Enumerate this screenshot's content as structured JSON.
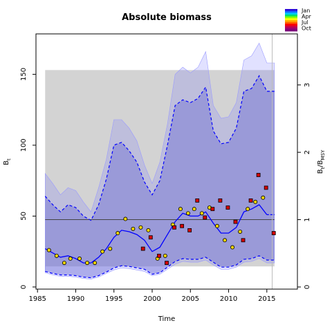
{
  "chart_data": {
    "type": "line",
    "title": "Absolute biomass",
    "xlabel": "Time",
    "ylabel": "B_t",
    "ylabel_right": "B_t/B_MSY",
    "xlim": [
      1984.8,
      2019.0
    ],
    "ylim": [
      -1.5,
      178.5
    ],
    "x_ticks": [
      1985,
      1990,
      1995,
      2000,
      2005,
      2010,
      2015
    ],
    "y_ticks": [
      0,
      50,
      100,
      150
    ],
    "right_ticks": [
      {
        "label": "0",
        "biomass": 0
      },
      {
        "label": "1",
        "biomass": 47.5
      },
      {
        "label": "2",
        "biomass": 95
      },
      {
        "label": "3",
        "biomass": 142.5
      }
    ],
    "bmsy": 47.5,
    "bmsy_ci_band": {
      "x": [
        1986,
        2016
      ],
      "lower": 14.5,
      "upper": 153
    },
    "forecast_start": 2015.7,
    "legend": {
      "position": "top-right",
      "labels": [
        "Jan",
        "Apr",
        "Jul",
        "Oct"
      ],
      "colors": [
        "#2a0ad8",
        "#1565ff",
        "#00c8ff",
        "#00e070",
        "#80ff00",
        "#ffff00",
        "#ffb000",
        "#ff6000",
        "#ff0000",
        "#d00040",
        "#a00070",
        "#7d007a"
      ]
    },
    "estimate": {
      "x": [
        1986,
        1987,
        1988,
        1989,
        1990,
        1991,
        1992,
        1993,
        1994,
        1995,
        1996,
        1997,
        1998,
        1999,
        2000,
        2001,
        2002,
        2003,
        2004,
        2005,
        2006,
        2007,
        2008,
        2009,
        2010,
        2011,
        2012,
        2013,
        2014,
        2015,
        2016
      ],
      "y": [
        27,
        24,
        21,
        22,
        20,
        17,
        17,
        21,
        27,
        35,
        40,
        39,
        37,
        33,
        25,
        28,
        37,
        46,
        52,
        50,
        50,
        53,
        45,
        38,
        38,
        42,
        53,
        55,
        58,
        51,
        51
      ]
    },
    "ci_lower": {
      "x": [
        1986,
        1987,
        1988,
        1989,
        1990,
        1991,
        1992,
        1993,
        1994,
        1995,
        1996,
        1997,
        1998,
        1999,
        2000,
        2001,
        2002,
        2003,
        2004,
        2005,
        2006,
        2007,
        2008,
        2009,
        2010,
        2011,
        2012,
        2013,
        2014,
        2015,
        2016
      ],
      "y": [
        11,
        9.5,
        8.5,
        8.5,
        8,
        7,
        6.5,
        8,
        10.5,
        13.5,
        15,
        14.5,
        13.5,
        12.5,
        9,
        10,
        14,
        18,
        20,
        19.5,
        19.5,
        21,
        17.5,
        14,
        14,
        15.5,
        19.5,
        20,
        22,
        19,
        19
      ]
    },
    "ci_upper": {
      "x": [
        1986,
        1987,
        1988,
        1989,
        1990,
        1991,
        1992,
        1993,
        1994,
        1995,
        1996,
        1997,
        1998,
        1999,
        2000,
        2001,
        2002,
        2003,
        2004,
        2005,
        2006,
        2007,
        2008,
        2009,
        2010,
        2011,
        2012,
        2013,
        2014,
        2015,
        2016
      ],
      "y": [
        64,
        58,
        53,
        58,
        56,
        50,
        47,
        58,
        76,
        100,
        102,
        96,
        88,
        74,
        65,
        75,
        100,
        128,
        132,
        130,
        133,
        141,
        110,
        101,
        102,
        112,
        138,
        140,
        149,
        138,
        138
      ]
    },
    "outer_band_lower": {
      "x": [
        1986,
        1987,
        1988,
        1989,
        1990,
        1991,
        1992,
        1993,
        1994,
        1995,
        1996,
        1997,
        1998,
        1999,
        2000,
        2001,
        2002,
        2003,
        2004,
        2005,
        2006,
        2007,
        2008,
        2009,
        2010,
        2011,
        2012,
        2013,
        2014,
        2015,
        2016
      ],
      "y": [
        10,
        8.5,
        7.5,
        7.5,
        7,
        6,
        5.5,
        7,
        9.5,
        12,
        13.5,
        13,
        12,
        11,
        8,
        9,
        12.5,
        16,
        18,
        17.5,
        17.5,
        19,
        15.5,
        12.5,
        12.5,
        14,
        17.5,
        18,
        20,
        17,
        17
      ]
    },
    "outer_band_upper": {
      "x": [
        1986,
        1987,
        1988,
        1989,
        1990,
        1991,
        1992,
        1993,
        1994,
        1995,
        1996,
        1997,
        1998,
        1999,
        2000,
        2001,
        2002,
        2003,
        2004,
        2005,
        2006,
        2007,
        2008,
        2009,
        2010,
        2011,
        2012,
        2013,
        2014,
        2015,
        2016
      ],
      "y": [
        80,
        73,
        65,
        70,
        68,
        60,
        53,
        70,
        90,
        118,
        118,
        112,
        103,
        86,
        73,
        88,
        115,
        150,
        155,
        151,
        155,
        166,
        128,
        119,
        120,
        130,
        160,
        163,
        172,
        158,
        158
      ]
    },
    "index_yellow": {
      "x": [
        1986.5,
        1987.5,
        1988.5,
        1989.3,
        1990.5,
        1991.5,
        1992.5,
        1993.5,
        1994.5,
        1995.5,
        1996.5,
        1997.5,
        1998.5,
        1999.5,
        2000.7,
        2001.7,
        2002.7,
        2003.7,
        2004.7,
        2005.5,
        2006.5,
        2007.5,
        2008.5,
        2009.5,
        2010.5,
        2011.5,
        2012.5,
        2013.5,
        2014.5
      ],
      "y": [
        26,
        22,
        17,
        20,
        20,
        17,
        17,
        25,
        27,
        38,
        48,
        41,
        42,
        40,
        20,
        22,
        44,
        55,
        52,
        55,
        52,
        56,
        43,
        33,
        28,
        39,
        55,
        60,
        63
      ]
    },
    "index_red": {
      "x": [
        1998.8,
        1999.8,
        2000.9,
        2001.9,
        2002.9,
        2003.9,
        2004.9,
        2005.9,
        2006.9,
        2007.9,
        2008.9,
        2009.9,
        2010.9,
        2011.9,
        2012.9,
        2013.9,
        2014.9,
        2015.9
      ],
      "y": [
        27,
        35,
        22,
        17,
        42,
        43,
        40,
        61,
        49,
        55,
        61,
        56,
        46,
        33,
        61,
        79,
        70,
        38
      ]
    }
  }
}
